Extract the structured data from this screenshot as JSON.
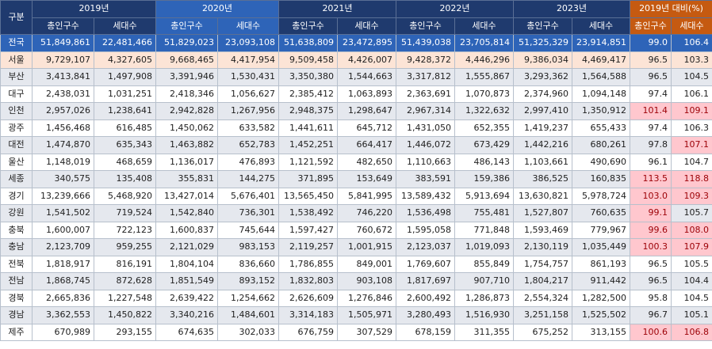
{
  "header": {
    "region_label": "구분",
    "years": [
      "2019년",
      "2020년",
      "2021년",
      "2022년",
      "2023년"
    ],
    "comparison": "2019년 대비(%)",
    "sub_pop": "총인구수",
    "sub_hh": "세대수"
  },
  "rows": [
    {
      "name": "전국",
      "v": [
        "51,849,861",
        "22,481,466",
        "51,829,023",
        "23,093,108",
        "51,638,809",
        "23,472,895",
        "51,439,038",
        "23,705,814",
        "51,325,329",
        "23,914,851"
      ],
      "p": "99.0",
      "h": "106.4",
      "pu": false,
      "hu": false
    },
    {
      "name": "서울",
      "v": [
        "9,729,107",
        "4,327,605",
        "9,668,465",
        "4,417,954",
        "9,509,458",
        "4,426,007",
        "9,428,372",
        "4,446,296",
        "9,386,034",
        "4,469,417"
      ],
      "p": "96.5",
      "h": "103.3",
      "pu": false,
      "hu": false
    },
    {
      "name": "부산",
      "v": [
        "3,413,841",
        "1,497,908",
        "3,391,946",
        "1,530,431",
        "3,350,380",
        "1,544,663",
        "3,317,812",
        "1,555,867",
        "3,293,362",
        "1,564,588"
      ],
      "p": "96.5",
      "h": "104.5",
      "pu": false,
      "hu": false
    },
    {
      "name": "대구",
      "v": [
        "2,438,031",
        "1,031,251",
        "2,418,346",
        "1,056,627",
        "2,385,412",
        "1,063,893",
        "2,363,691",
        "1,070,873",
        "2,374,960",
        "1,094,148"
      ],
      "p": "97.4",
      "h": "106.1",
      "pu": false,
      "hu": false
    },
    {
      "name": "인천",
      "v": [
        "2,957,026",
        "1,238,641",
        "2,942,828",
        "1,267,956",
        "2,948,375",
        "1,298,647",
        "2,967,314",
        "1,322,632",
        "2,997,410",
        "1,350,912"
      ],
      "p": "101.4",
      "h": "109.1",
      "pu": true,
      "hu": true
    },
    {
      "name": "광주",
      "v": [
        "1,456,468",
        "616,485",
        "1,450,062",
        "633,582",
        "1,441,611",
        "645,712",
        "1,431,050",
        "652,355",
        "1,419,237",
        "655,433"
      ],
      "p": "97.4",
      "h": "106.3",
      "pu": false,
      "hu": false
    },
    {
      "name": "대전",
      "v": [
        "1,474,870",
        "635,343",
        "1,463,882",
        "652,783",
        "1,452,251",
        "664,417",
        "1,446,072",
        "673,429",
        "1,442,216",
        "680,261"
      ],
      "p": "97.8",
      "h": "107.1",
      "pu": false,
      "hu": true
    },
    {
      "name": "울산",
      "v": [
        "1,148,019",
        "468,659",
        "1,136,017",
        "476,893",
        "1,121,592",
        "482,650",
        "1,110,663",
        "486,143",
        "1,103,661",
        "490,690"
      ],
      "p": "96.1",
      "h": "104.7",
      "pu": false,
      "hu": false
    },
    {
      "name": "세종",
      "v": [
        "340,575",
        "135,408",
        "355,831",
        "144,275",
        "371,895",
        "153,649",
        "383,591",
        "159,386",
        "386,525",
        "160,835"
      ],
      "p": "113.5",
      "h": "118.8",
      "pu": true,
      "hu": true
    },
    {
      "name": "경기",
      "v": [
        "13,239,666",
        "5,468,920",
        "13,427,014",
        "5,676,401",
        "13,565,450",
        "5,841,995",
        "13,589,432",
        "5,913,694",
        "13,630,821",
        "5,978,724"
      ],
      "p": "103.0",
      "h": "109.3",
      "pu": true,
      "hu": true
    },
    {
      "name": "강원",
      "v": [
        "1,541,502",
        "719,524",
        "1,542,840",
        "736,301",
        "1,538,492",
        "746,220",
        "1,536,498",
        "755,481",
        "1,527,807",
        "760,635"
      ],
      "p": "99.1",
      "h": "105.7",
      "pu": true,
      "hu": false
    },
    {
      "name": "충북",
      "v": [
        "1,600,007",
        "722,123",
        "1,600,837",
        "745,644",
        "1,597,427",
        "760,672",
        "1,595,058",
        "771,848",
        "1,593,469",
        "779,967"
      ],
      "p": "99.6",
      "h": "108.0",
      "pu": true,
      "hu": true
    },
    {
      "name": "충남",
      "v": [
        "2,123,709",
        "959,255",
        "2,121,029",
        "983,153",
        "2,119,257",
        "1,001,915",
        "2,123,037",
        "1,019,093",
        "2,130,119",
        "1,035,449"
      ],
      "p": "100.3",
      "h": "107.9",
      "pu": true,
      "hu": true
    },
    {
      "name": "전북",
      "v": [
        "1,818,917",
        "816,191",
        "1,804,104",
        "836,660",
        "1,786,855",
        "849,001",
        "1,769,607",
        "855,849",
        "1,754,757",
        "861,193"
      ],
      "p": "96.5",
      "h": "105.5",
      "pu": false,
      "hu": false
    },
    {
      "name": "전남",
      "v": [
        "1,868,745",
        "872,628",
        "1,851,549",
        "893,152",
        "1,832,803",
        "903,108",
        "1,817,697",
        "907,710",
        "1,804,217",
        "911,442"
      ],
      "p": "96.5",
      "h": "104.4",
      "pu": false,
      "hu": false
    },
    {
      "name": "경북",
      "v": [
        "2,665,836",
        "1,227,548",
        "2,639,422",
        "1,254,662",
        "2,626,609",
        "1,276,846",
        "2,600,492",
        "1,286,873",
        "2,554,324",
        "1,282,500"
      ],
      "p": "95.8",
      "h": "104.5",
      "pu": false,
      "hu": false
    },
    {
      "name": "경남",
      "v": [
        "3,362,553",
        "1,450,822",
        "3,340,216",
        "1,484,601",
        "3,314,183",
        "1,505,971",
        "3,280,493",
        "1,516,930",
        "3,251,158",
        "1,525,502"
      ],
      "p": "96.7",
      "h": "105.1",
      "pu": false,
      "hu": false
    },
    {
      "name": "제주",
      "v": [
        "670,989",
        "293,155",
        "674,635",
        "302,033",
        "676,759",
        "307,529",
        "678,159",
        "311,355",
        "675,252",
        "313,155"
      ],
      "p": "100.6",
      "h": "106.8",
      "pu": true,
      "hu": true
    }
  ]
}
